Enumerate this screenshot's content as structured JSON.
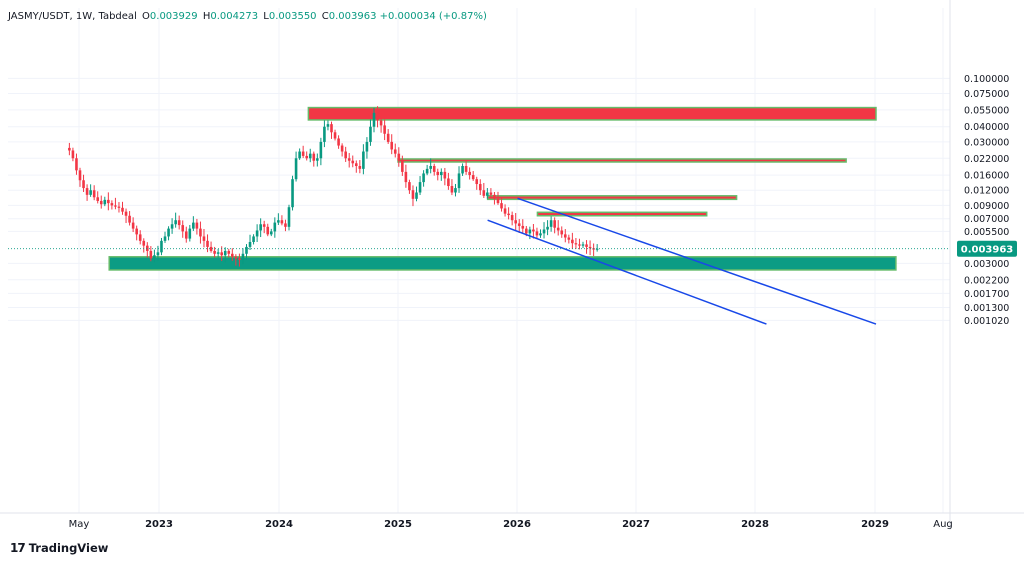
{
  "header": {
    "symbol": "JASMY/USDT, 1W, Tabdeal",
    "open_label": "O",
    "open": "0.003929",
    "high_label": "H",
    "high": "0.004273",
    "low_label": "L",
    "low": "0.003550",
    "close_label": "C",
    "close": "0.003963",
    "change": "+0.000034 (+0.87%)"
  },
  "brand": {
    "logo": "17",
    "name": "TradingView"
  },
  "colors": {
    "up": "#089981",
    "down": "#f23645",
    "zone_red": "#f23645",
    "zone_green": "#0c9c84",
    "zone_border": "#66bb6a",
    "trendline": "#1848e8"
  },
  "chart_data": {
    "type": "candlestick",
    "price_axis": {
      "scale": "log",
      "ticks": [
        "0.100000",
        "0.075000",
        "0.055000",
        "0.040000",
        "0.030000",
        "0.022000",
        "0.016000",
        "0.012000",
        "0.009000",
        "0.007000",
        "0.005500",
        "0.003963",
        "0.003000",
        "0.002200",
        "0.001700",
        "0.001300",
        "0.001020"
      ],
      "current_price": "0.003963"
    },
    "time_axis": {
      "labels": [
        "May",
        "2023",
        "2024",
        "2025",
        "2026",
        "2027",
        "2028",
        "2029",
        "Aug"
      ]
    },
    "candles_range_approx": [
      "2022-04",
      "2026-09"
    ],
    "closes_weekly_approx": [
      0.0255,
      0.022,
      0.0175,
      0.0145,
      0.0125,
      0.011,
      0.012,
      0.0105,
      0.0098,
      0.0092,
      0.01,
      0.0094,
      0.009,
      0.0088,
      0.0086,
      0.008,
      0.0074,
      0.0065,
      0.0058,
      0.0052,
      0.0046,
      0.0042,
      0.0038,
      0.0033,
      0.0035,
      0.0037,
      0.0046,
      0.005,
      0.0058,
      0.0063,
      0.0068,
      0.0062,
      0.0055,
      0.0048,
      0.0058,
      0.0065,
      0.0058,
      0.005,
      0.0046,
      0.0041,
      0.0038,
      0.0036,
      0.0037,
      0.0035,
      0.0038,
      0.0036,
      0.0034,
      0.0033,
      0.0032,
      0.0036,
      0.0041,
      0.0045,
      0.005,
      0.0056,
      0.0063,
      0.006,
      0.0052,
      0.0055,
      0.0065,
      0.0068,
      0.0064,
      0.006,
      0.0087,
      0.0148,
      0.022,
      0.025,
      0.023,
      0.022,
      0.024,
      0.021,
      0.022,
      0.03,
      0.04,
      0.042,
      0.036,
      0.032,
      0.028,
      0.025,
      0.022,
      0.021,
      0.02,
      0.019,
      0.018,
      0.025,
      0.03,
      0.04,
      0.052,
      0.045,
      0.041,
      0.035,
      0.03,
      0.026,
      0.024,
      0.021,
      0.017,
      0.014,
      0.012,
      0.0102,
      0.0115,
      0.014,
      0.0165,
      0.018,
      0.019,
      0.017,
      0.016,
      0.017,
      0.015,
      0.013,
      0.0115,
      0.0125,
      0.0165,
      0.019,
      0.017,
      0.016,
      0.0148,
      0.0135,
      0.012,
      0.0108,
      0.0115,
      0.011,
      0.0102,
      0.0094,
      0.0085,
      0.0077,
      0.0075,
      0.0068,
      0.0064,
      0.0061,
      0.0058,
      0.0053,
      0.0057,
      0.0055,
      0.0051,
      0.0053,
      0.0057,
      0.006,
      0.0068,
      0.0059,
      0.0056,
      0.0052,
      0.0049,
      0.0047,
      0.0044,
      0.0043,
      0.0042,
      0.0043,
      0.0041,
      0.004,
      0.0039,
      0.00396
    ],
    "zones": [
      {
        "color": "red",
        "price_low": 0.0455,
        "price_high": 0.0575,
        "from": "2024-04",
        "to": "2029-01"
      },
      {
        "color": "red",
        "price_low": 0.0205,
        "price_high": 0.0217,
        "from": "2025-01",
        "to": "2028-10"
      },
      {
        "color": "red",
        "price_low": 0.0101,
        "price_high": 0.0108,
        "from": "2025-10",
        "to": "2027-11"
      },
      {
        "color": "red",
        "price_low": 0.0074,
        "price_high": 0.0079,
        "from": "2026-03",
        "to": "2027-08"
      },
      {
        "color": "green",
        "price_low": 0.00265,
        "price_high": 0.0034,
        "from": "2022-08",
        "to": "2029-03"
      }
    ],
    "trendlines": [
      {
        "name": "channel-upper",
        "from": [
          "2026-01",
          0.0103
        ],
        "to": [
          "2029-01",
          0.00095
        ]
      },
      {
        "name": "channel-lower",
        "from": [
          "2025-10",
          0.0068
        ],
        "to": [
          "2028-02",
          0.00095
        ]
      }
    ],
    "grid": true,
    "legend_position": "top-left"
  }
}
